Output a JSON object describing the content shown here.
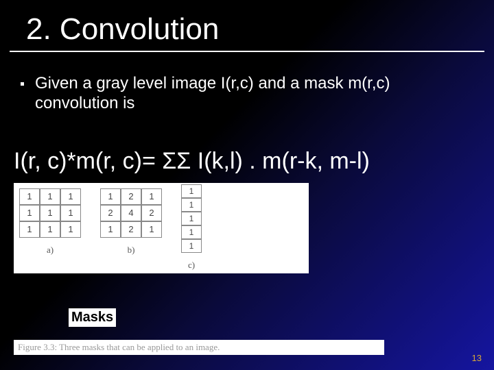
{
  "title": "2. Convolution",
  "bullet": "Given a gray level image  I(r,c) and a mask m(r,c) convolution is",
  "formula": "I(r, c)*m(r, c)=  ΣΣ I(k,l) . m(r-k, m-l)",
  "masks": {
    "a": {
      "values": [
        [
          1,
          1,
          1
        ],
        [
          1,
          1,
          1
        ],
        [
          1,
          1,
          1
        ]
      ],
      "label": "a)"
    },
    "b": {
      "values": [
        [
          1,
          2,
          1
        ],
        [
          2,
          4,
          2
        ],
        [
          1,
          2,
          1
        ]
      ],
      "label": "b)"
    },
    "c": {
      "values": [
        1,
        1,
        1,
        1,
        1
      ],
      "label": "c)"
    },
    "title": "Masks",
    "caption": "Figure 3.3: Three masks that can be applied to an image."
  },
  "page_number": "13",
  "colors": {
    "bg_start": "#000000",
    "bg_end": "#1515a0",
    "text": "#ffffff",
    "figure_bg": "#ffffff",
    "cell_border": "#888888",
    "page_num": "#d8a838"
  }
}
